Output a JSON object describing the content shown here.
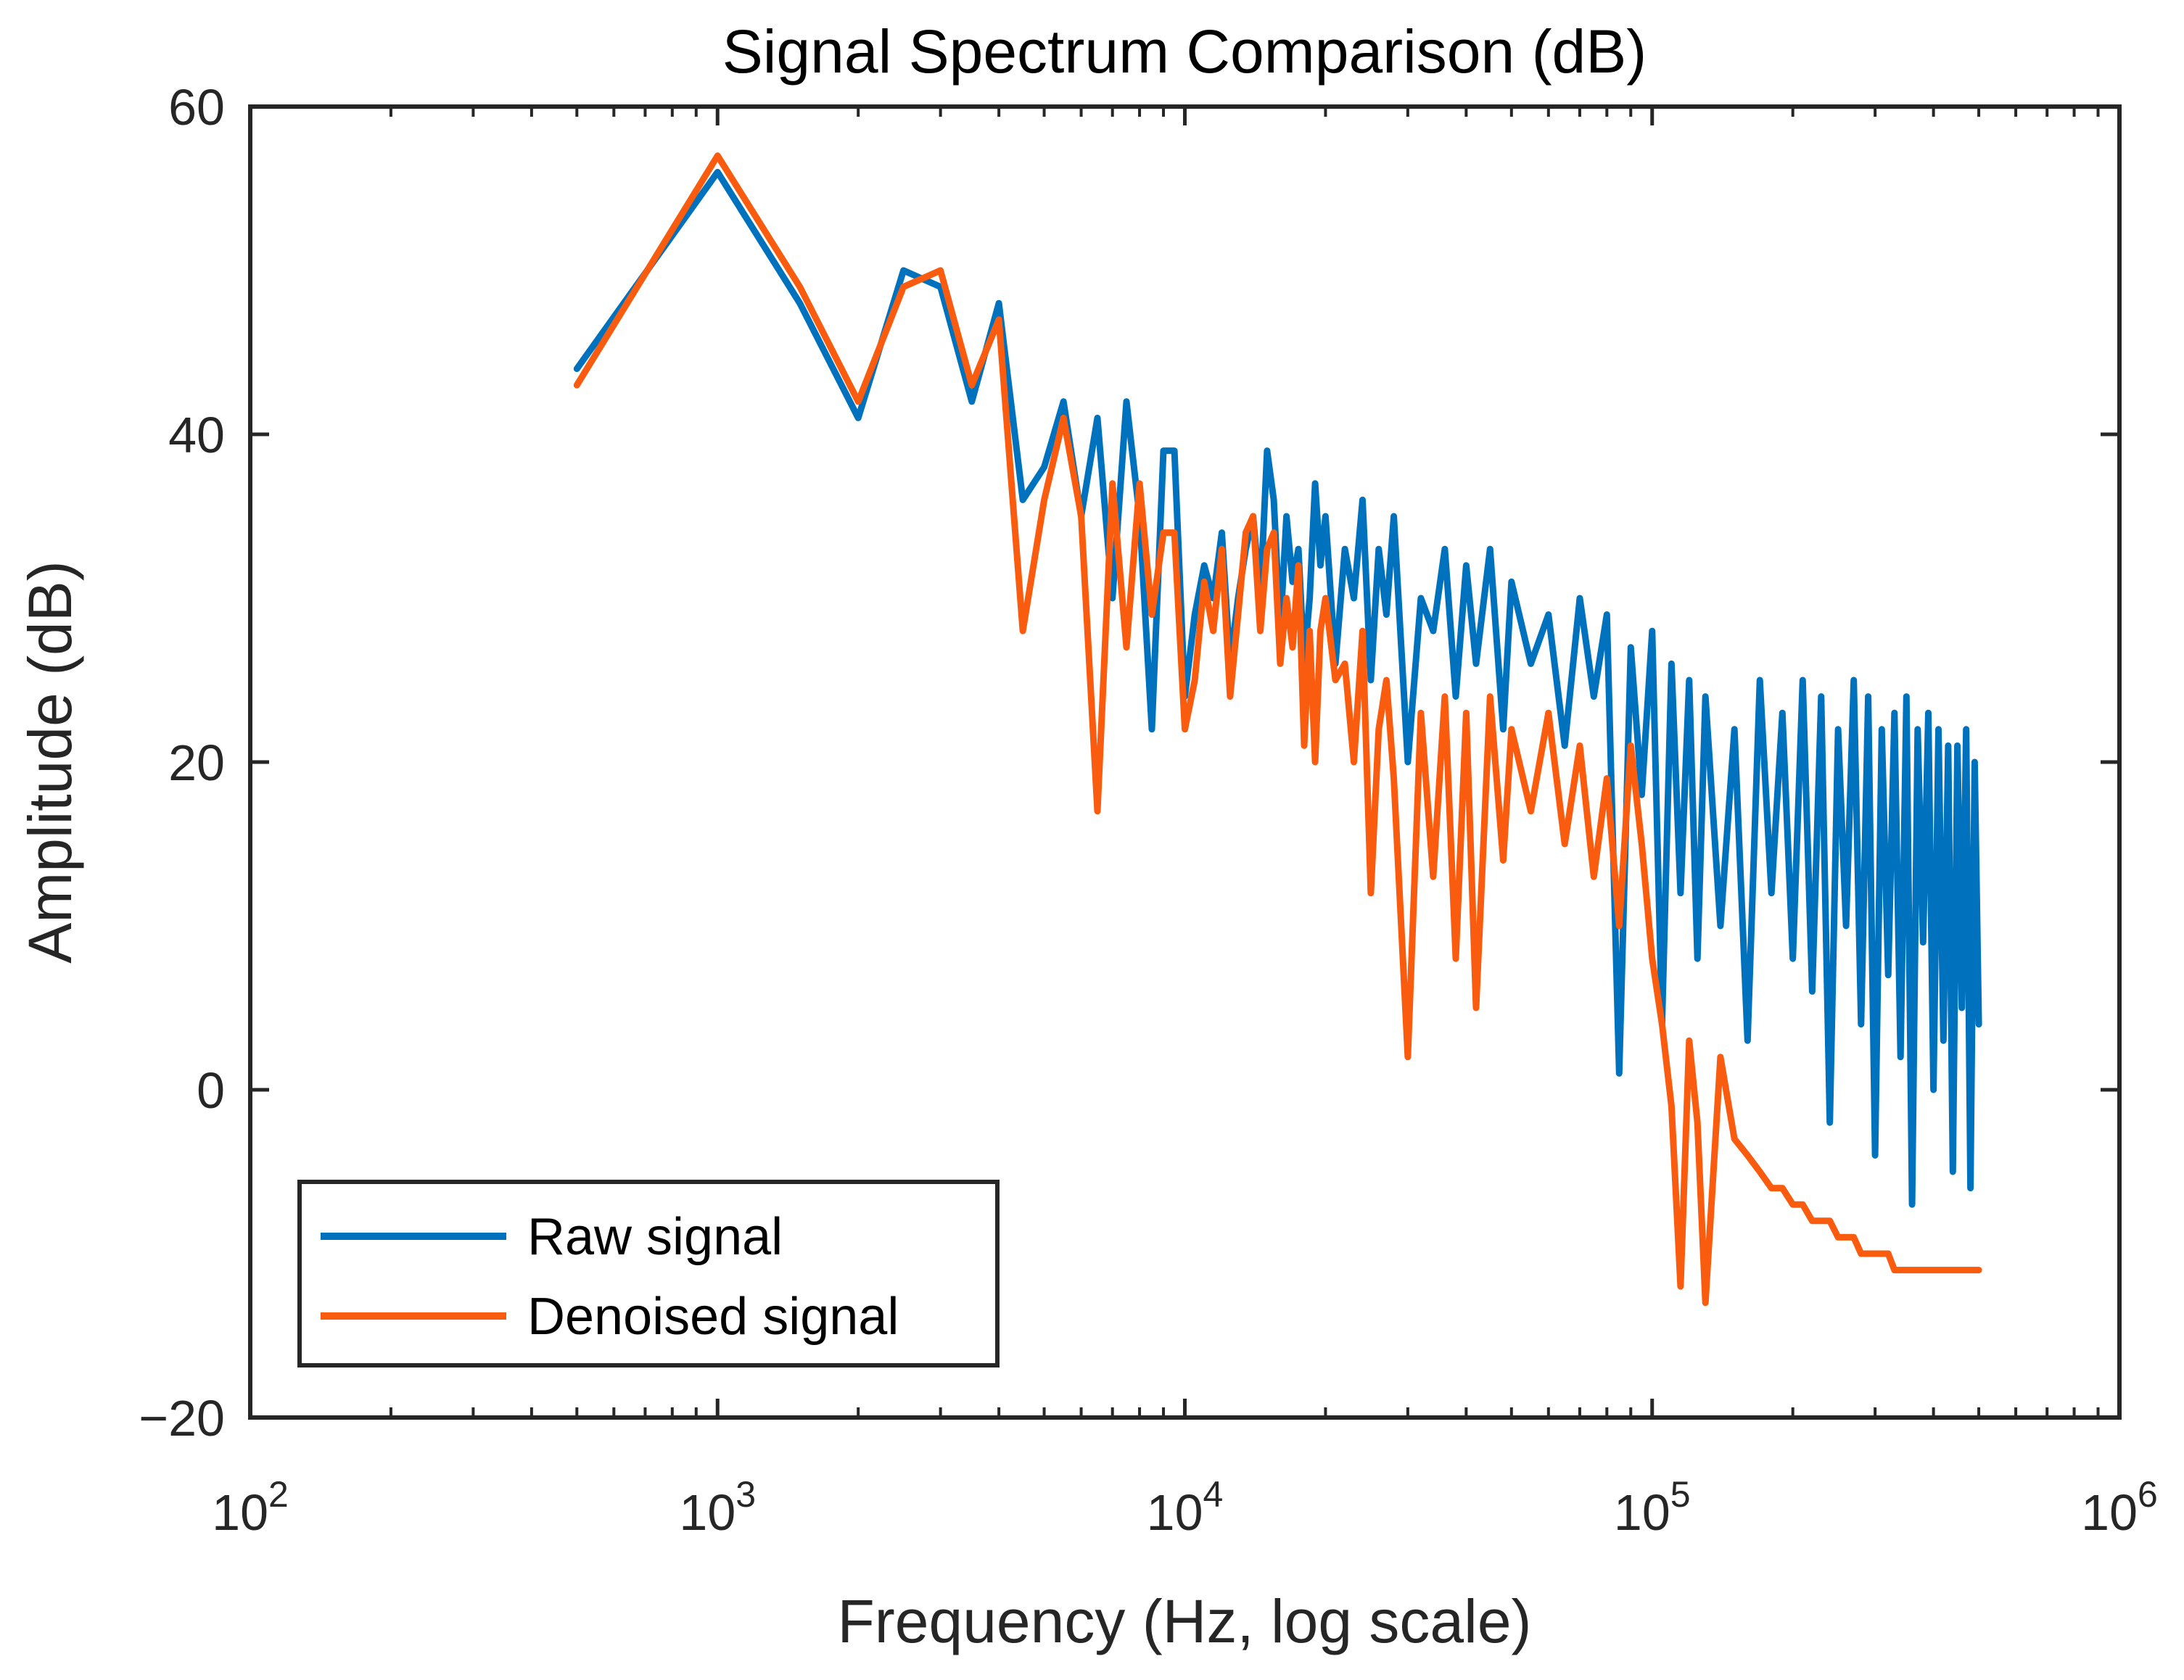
{
  "chart_data": {
    "type": "line",
    "title": "Signal Spectrum Comparison (dB)",
    "xlabel": "Frequency (Hz, log scale)",
    "ylabel": "Amplitude (dB)",
    "xscale": "log",
    "xlim": [
      100,
      1000000
    ],
    "ylim": [
      -20,
      60
    ],
    "yticks": [
      -20,
      0,
      20,
      40,
      60
    ],
    "ytick_labels": [
      "−20",
      "0",
      "20",
      "40",
      "60"
    ],
    "xticks": [
      {
        "value": 100,
        "base": "10",
        "exp": "2"
      },
      {
        "value": 1000,
        "base": "10",
        "exp": "3"
      },
      {
        "value": 10000,
        "base": "10",
        "exp": "4"
      },
      {
        "value": 100000,
        "base": "10",
        "exp": "5"
      },
      {
        "value": 1000000,
        "base": "10",
        "exp": "6"
      }
    ],
    "grid": false,
    "legend_position": "bottom-left",
    "series": [
      {
        "name": "Raw signal",
        "color": "#0072BD",
        "x": [
          500,
          1000,
          1500,
          2000,
          2500,
          3000,
          3500,
          4000,
          4500,
          5000,
          5500,
          6000,
          6500,
          7000,
          7500,
          8000,
          8500,
          9000,
          9500,
          10000,
          10500,
          11000,
          11500,
          12000,
          12500,
          13000,
          13500,
          14000,
          14500,
          15000,
          15500,
          16000,
          16500,
          17000,
          17500,
          18000,
          18500,
          19000,
          19500,
          20000,
          21000,
          22000,
          23000,
          24000,
          25000,
          26000,
          27000,
          28000,
          30000,
          32000,
          34000,
          36000,
          38000,
          40000,
          42000,
          45000,
          48000,
          50000,
          55000,
          60000,
          65000,
          70000,
          75000,
          80000,
          85000,
          90000,
          95000,
          100000,
          105000,
          110000,
          115000,
          120000,
          125000,
          130000,
          140000,
          150000,
          160000,
          170000,
          180000,
          190000,
          200000,
          210000,
          220000,
          230000,
          240000,
          250000,
          260000,
          270000,
          280000,
          290000,
          300000,
          310000,
          320000,
          330000,
          340000,
          350000,
          360000,
          370000,
          380000,
          390000,
          400000,
          410000,
          420000,
          430000,
          440000,
          450000,
          460000,
          470000,
          480000,
          490000,
          500000
        ],
        "y": [
          44,
          56,
          48,
          41,
          50,
          49,
          42,
          48,
          36,
          38,
          42,
          35,
          41,
          30,
          42,
          35,
          22,
          39,
          39,
          24,
          29,
          32,
          30,
          34,
          26,
          30,
          33,
          35,
          30,
          39,
          36,
          28,
          35,
          31,
          33,
          26,
          30,
          37,
          32,
          35,
          26,
          33,
          30,
          36,
          25,
          33,
          29,
          35,
          20,
          30,
          28,
          33,
          24,
          32,
          26,
          33,
          22,
          31,
          26,
          29,
          21,
          30,
          24,
          29,
          1,
          27,
          18,
          28,
          4,
          26,
          12,
          25,
          8,
          24,
          10,
          22,
          3,
          25,
          12,
          23,
          8,
          25,
          6,
          24,
          -2,
          22,
          10,
          25,
          4,
          24,
          -4,
          22,
          7,
          23,
          2,
          24,
          -7,
          22,
          9,
          23,
          0,
          22,
          3,
          21,
          -5,
          21,
          5,
          22,
          -6,
          20,
          4
        ]
      },
      {
        "name": "Denoised signal",
        "color": "#F95C0F",
        "x": [
          500,
          1000,
          1500,
          2000,
          2500,
          3000,
          3500,
          4000,
          4500,
          5000,
          5500,
          6000,
          6500,
          7000,
          7500,
          8000,
          8500,
          9000,
          9500,
          10000,
          10500,
          11000,
          11500,
          12000,
          12500,
          13000,
          13500,
          14000,
          14500,
          15000,
          15500,
          16000,
          16500,
          17000,
          17500,
          18000,
          18500,
          19000,
          19500,
          20000,
          21000,
          22000,
          23000,
          24000,
          25000,
          26000,
          27000,
          28000,
          30000,
          32000,
          34000,
          36000,
          38000,
          40000,
          42000,
          45000,
          48000,
          50000,
          55000,
          60000,
          65000,
          70000,
          75000,
          80000,
          85000,
          90000,
          95000,
          100000,
          105000,
          110000,
          115000,
          120000,
          125000,
          130000,
          140000,
          150000,
          160000,
          170000,
          180000,
          190000,
          200000,
          210000,
          220000,
          230000,
          240000,
          250000,
          260000,
          270000,
          280000,
          290000,
          300000,
          310000,
          320000,
          330000,
          340000,
          350000,
          360000,
          370000,
          380000,
          390000,
          400000,
          410000,
          420000,
          430000,
          440000,
          450000,
          460000,
          470000,
          480000,
          490000,
          500000
        ],
        "y": [
          43,
          57,
          49,
          42,
          49,
          50,
          43,
          47,
          28,
          36,
          41,
          35,
          17,
          37,
          27,
          37,
          29,
          34,
          34,
          22,
          25,
          31,
          28,
          33,
          24,
          29,
          34,
          35,
          28,
          33,
          34,
          26,
          30,
          27,
          32,
          21,
          28,
          20,
          28,
          30,
          25,
          26,
          20,
          28,
          12,
          22,
          25,
          19,
          2,
          23,
          13,
          24,
          8,
          23,
          5,
          24,
          14,
          22,
          17,
          23,
          15,
          21,
          13,
          19,
          10,
          21,
          15,
          8,
          4,
          -1,
          -12,
          3,
          -2,
          -13,
          2,
          -3,
          -4,
          -5,
          -6,
          -6,
          -7,
          -7,
          -8,
          -8,
          -8,
          -9,
          -9,
          -9,
          -10,
          -10,
          -10,
          -10,
          -10,
          -11,
          -11,
          -11,
          -11,
          -11,
          -11,
          -11,
          -11,
          -11,
          -11,
          -11,
          -11,
          -11,
          -11,
          -11,
          -11,
          -11,
          -11
        ]
      }
    ]
  }
}
